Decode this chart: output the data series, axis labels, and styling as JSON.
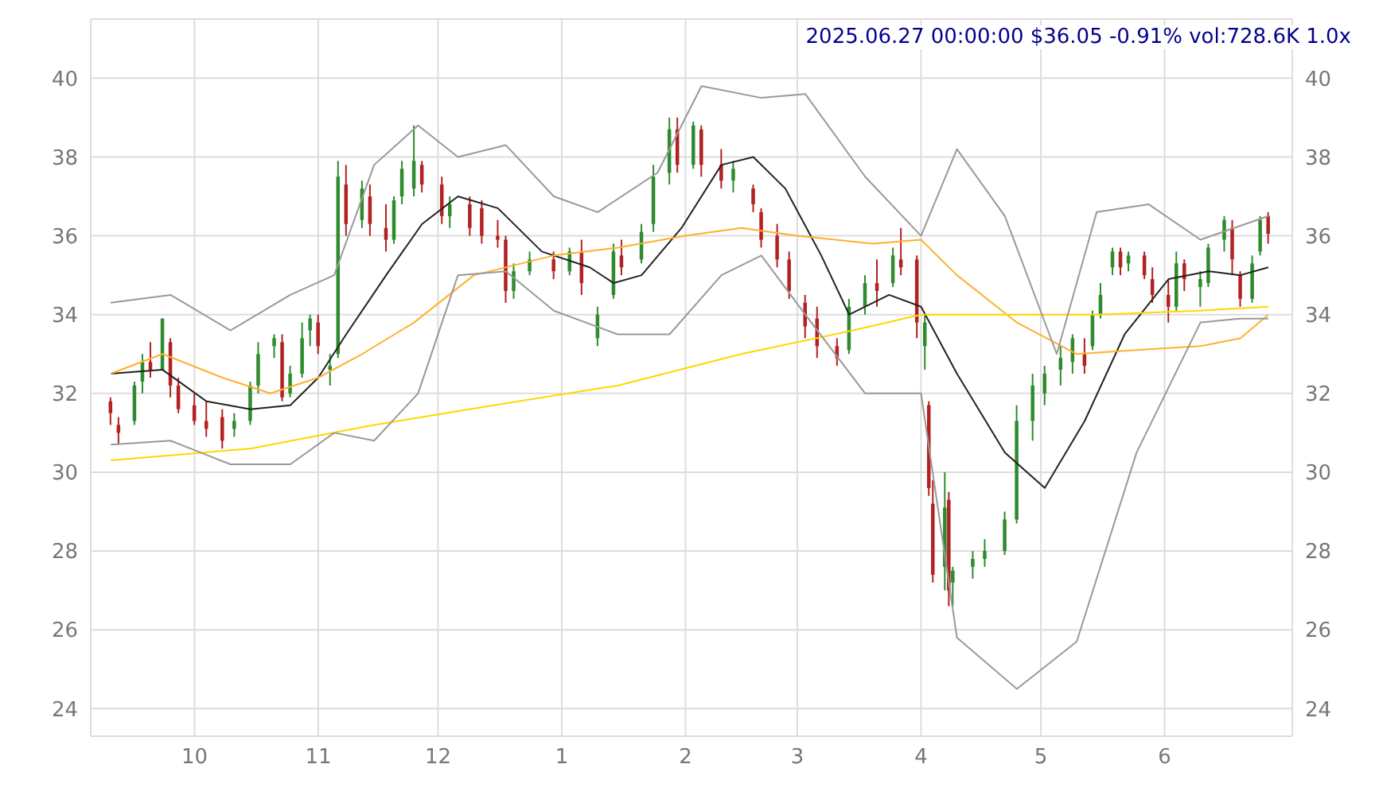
{
  "chart_data": {
    "type": "candlestick",
    "title": "2025.06.27 00:00:00 $36.05 -0.91% vol:728.6K 1.0x",
    "x": [
      "2024-09-10",
      "2024-09-12",
      "2024-09-16",
      "2024-09-18",
      "2024-09-20",
      "2024-09-23",
      "2024-09-25",
      "2024-09-27",
      "2024-10-01",
      "2024-10-04",
      "2024-10-08",
      "2024-10-11",
      "2024-10-15",
      "2024-10-17",
      "2024-10-21",
      "2024-10-23",
      "2024-10-25",
      "2024-10-28",
      "2024-10-30",
      "2024-11-01",
      "2024-11-04",
      "2024-11-06",
      "2024-11-08",
      "2024-11-12",
      "2024-11-14",
      "2024-11-18",
      "2024-11-20",
      "2024-11-22",
      "2024-11-25",
      "2024-11-27",
      "2024-12-02",
      "2024-12-04",
      "2024-12-09",
      "2024-12-12",
      "2024-12-16",
      "2024-12-18",
      "2024-12-20",
      "2024-12-24",
      "2024-12-30",
      "2025-01-03",
      "2025-01-06",
      "2025-01-10",
      "2025-01-14",
      "2025-01-16",
      "2025-01-21",
      "2025-01-24",
      "2025-01-28",
      "2025-01-30",
      "2025-02-03",
      "2025-02-05",
      "2025-02-10",
      "2025-02-13",
      "2025-02-18",
      "2025-02-20",
      "2025-02-24",
      "2025-02-27",
      "2025-03-03",
      "2025-03-06",
      "2025-03-11",
      "2025-03-14",
      "2025-03-18",
      "2025-03-21",
      "2025-03-25",
      "2025-03-27",
      "2025-03-31",
      "2025-04-02",
      "2025-04-03",
      "2025-04-04",
      "2025-04-07",
      "2025-04-08",
      "2025-04-09",
      "2025-04-14",
      "2025-04-17",
      "2025-04-22",
      "2025-04-25",
      "2025-04-29",
      "2025-05-02",
      "2025-05-06",
      "2025-05-09",
      "2025-05-12",
      "2025-05-14",
      "2025-05-16",
      "2025-05-19",
      "2025-05-21",
      "2025-05-23",
      "2025-05-27",
      "2025-05-29",
      "2025-06-02",
      "2025-06-04",
      "2025-06-06",
      "2025-06-10",
      "2025-06-12",
      "2025-06-16",
      "2025-06-18",
      "2025-06-20",
      "2025-06-23",
      "2025-06-25",
      "2025-06-27"
    ],
    "ohlc": [
      [
        31.8,
        31.9,
        31.2,
        31.5
      ],
      [
        31.2,
        31.4,
        30.7,
        31.0
      ],
      [
        31.3,
        32.3,
        31.2,
        32.2
      ],
      [
        32.3,
        33.0,
        32.0,
        32.8
      ],
      [
        32.8,
        33.3,
        32.4,
        32.6
      ],
      [
        32.6,
        33.9,
        32.6,
        33.9
      ],
      [
        33.3,
        33.4,
        31.9,
        32.2
      ],
      [
        32.2,
        32.4,
        31.5,
        31.6
      ],
      [
        31.7,
        32.0,
        31.2,
        31.3
      ],
      [
        31.3,
        31.8,
        30.9,
        31.1
      ],
      [
        31.4,
        31.6,
        30.6,
        30.8
      ],
      [
        31.1,
        31.5,
        30.9,
        31.3
      ],
      [
        31.3,
        32.3,
        31.2,
        32.2
      ],
      [
        32.2,
        33.3,
        32.0,
        33.0
      ],
      [
        33.2,
        33.5,
        32.9,
        33.4
      ],
      [
        33.3,
        33.5,
        31.8,
        31.9
      ],
      [
        32.0,
        32.7,
        31.9,
        32.5
      ],
      [
        32.5,
        33.8,
        32.4,
        33.4
      ],
      [
        33.6,
        34.0,
        33.2,
        33.9
      ],
      [
        33.8,
        34.0,
        33.0,
        33.2
      ],
      [
        32.6,
        33.0,
        32.2,
        32.7
      ],
      [
        33.0,
        37.9,
        32.9,
        37.5
      ],
      [
        37.3,
        37.8,
        36.0,
        36.3
      ],
      [
        36.4,
        37.4,
        36.2,
        37.2
      ],
      [
        37.0,
        37.3,
        36.0,
        36.3
      ],
      [
        36.2,
        36.8,
        35.6,
        35.9
      ],
      [
        35.9,
        37.0,
        35.8,
        36.9
      ],
      [
        37.0,
        37.9,
        36.8,
        37.7
      ],
      [
        37.2,
        38.8,
        37.0,
        37.9
      ],
      [
        37.8,
        37.9,
        37.1,
        37.3
      ],
      [
        37.3,
        37.5,
        36.3,
        36.5
      ],
      [
        36.5,
        37.0,
        36.2,
        36.8
      ],
      [
        36.8,
        37.0,
        36.0,
        36.2
      ],
      [
        36.7,
        36.9,
        35.8,
        36.0
      ],
      [
        36.0,
        36.4,
        35.7,
        35.9
      ],
      [
        35.9,
        36.0,
        34.3,
        34.6
      ],
      [
        34.6,
        35.3,
        34.4,
        35.1
      ],
      [
        35.1,
        35.6,
        35.0,
        35.4
      ],
      [
        35.4,
        35.6,
        34.9,
        35.1
      ],
      [
        35.1,
        35.7,
        35.0,
        35.6
      ],
      [
        35.6,
        35.9,
        34.5,
        34.8
      ],
      [
        33.4,
        34.2,
        33.2,
        34.0
      ],
      [
        34.5,
        35.8,
        34.4,
        35.6
      ],
      [
        35.5,
        35.9,
        35.0,
        35.2
      ],
      [
        35.4,
        36.3,
        35.3,
        36.1
      ],
      [
        36.3,
        37.8,
        36.1,
        37.5
      ],
      [
        37.6,
        39.0,
        37.3,
        38.7
      ],
      [
        38.7,
        39.0,
        37.6,
        37.8
      ],
      [
        37.8,
        38.9,
        37.7,
        38.8
      ],
      [
        38.7,
        38.8,
        37.5,
        37.8
      ],
      [
        37.8,
        38.2,
        37.2,
        37.4
      ],
      [
        37.4,
        37.9,
        37.1,
        37.7
      ],
      [
        37.2,
        37.3,
        36.6,
        36.8
      ],
      [
        36.6,
        36.7,
        35.7,
        35.9
      ],
      [
        36.0,
        36.3,
        35.2,
        35.4
      ],
      [
        35.4,
        35.6,
        34.4,
        34.6
      ],
      [
        34.3,
        34.5,
        33.4,
        33.7
      ],
      [
        33.9,
        34.2,
        32.9,
        33.2
      ],
      [
        33.2,
        33.4,
        32.7,
        32.9
      ],
      [
        33.1,
        34.4,
        33.0,
        34.2
      ],
      [
        34.2,
        35.0,
        34.0,
        34.8
      ],
      [
        34.8,
        35.4,
        34.2,
        34.6
      ],
      [
        34.8,
        35.7,
        34.7,
        35.5
      ],
      [
        35.4,
        36.2,
        35.0,
        35.2
      ],
      [
        35.4,
        35.5,
        33.4,
        33.8
      ],
      [
        33.2,
        34.0,
        32.6,
        33.8
      ],
      [
        31.7,
        31.8,
        29.4,
        29.6
      ],
      [
        29.2,
        29.8,
        27.2,
        27.4
      ],
      [
        27.6,
        30.0,
        27.0,
        29.1
      ],
      [
        29.3,
        29.5,
        26.6,
        27.0
      ],
      [
        27.2,
        27.6,
        26.6,
        27.5
      ],
      [
        27.6,
        28.0,
        27.3,
        27.8
      ],
      [
        27.8,
        28.3,
        27.6,
        28.0
      ],
      [
        28.0,
        29.0,
        27.9,
        28.8
      ],
      [
        28.8,
        31.7,
        28.7,
        31.3
      ],
      [
        31.3,
        32.5,
        30.8,
        32.2
      ],
      [
        32.0,
        32.7,
        31.7,
        32.5
      ],
      [
        32.6,
        33.2,
        32.2,
        32.9
      ],
      [
        32.8,
        33.5,
        32.5,
        33.4
      ],
      [
        33.0,
        33.4,
        32.5,
        32.7
      ],
      [
        33.2,
        34.1,
        33.1,
        34.0
      ],
      [
        34.0,
        34.8,
        33.9,
        34.5
      ],
      [
        35.2,
        35.7,
        35.0,
        35.6
      ],
      [
        35.6,
        35.7,
        35.0,
        35.2
      ],
      [
        35.3,
        35.6,
        35.1,
        35.5
      ],
      [
        35.5,
        35.6,
        34.9,
        35.0
      ],
      [
        34.9,
        35.2,
        34.3,
        34.5
      ],
      [
        34.5,
        34.9,
        33.8,
        34.2
      ],
      [
        34.2,
        35.6,
        34.1,
        35.3
      ],
      [
        35.3,
        35.4,
        34.6,
        34.9
      ],
      [
        34.7,
        35.1,
        34.2,
        34.9
      ],
      [
        34.8,
        35.8,
        34.7,
        35.7
      ],
      [
        35.9,
        36.5,
        35.6,
        36.4
      ],
      [
        36.2,
        36.4,
        35.0,
        35.4
      ],
      [
        35.0,
        35.1,
        34.2,
        34.4
      ],
      [
        34.4,
        35.5,
        34.3,
        35.3
      ],
      [
        35.6,
        36.5,
        35.5,
        36.4
      ],
      [
        36.5,
        36.6,
        35.8,
        36.05
      ]
    ],
    "colors": [
      "#b22222",
      "#b22222",
      "#2e8b2e",
      "#2e8b2e",
      "#b22222",
      "#2e8b2e",
      "#b22222",
      "#b22222",
      "#b22222",
      "#b22222",
      "#b22222",
      "#2e8b2e",
      "#2e8b2e",
      "#2e8b2e",
      "#2e8b2e",
      "#b22222",
      "#2e8b2e",
      "#2e8b2e",
      "#2e8b2e",
      "#b22222",
      "#2e8b2e",
      "#2e8b2e",
      "#b22222",
      "#2e8b2e",
      "#b22222",
      "#b22222",
      "#2e8b2e",
      "#2e8b2e",
      "#2e8b2e",
      "#b22222",
      "#b22222",
      "#2e8b2e",
      "#b22222",
      "#b22222",
      "#b22222",
      "#b22222",
      "#2e8b2e",
      "#2e8b2e",
      "#b22222",
      "#2e8b2e",
      "#b22222",
      "#2e8b2e",
      "#2e8b2e",
      "#b22222",
      "#2e8b2e",
      "#2e8b2e",
      "#2e8b2e",
      "#b22222",
      "#2e8b2e",
      "#b22222",
      "#b22222",
      "#2e8b2e",
      "#b22222",
      "#b22222",
      "#b22222",
      "#b22222",
      "#b22222",
      "#b22222",
      "#b22222",
      "#2e8b2e",
      "#2e8b2e",
      "#b22222",
      "#2e8b2e",
      "#b22222",
      "#b22222",
      "#2e8b2e",
      "#b22222",
      "#b22222",
      "#2e8b2e",
      "#b22222",
      "#2e8b2e",
      "#2e8b2e",
      "#2e8b2e",
      "#2e8b2e",
      "#2e8b2e",
      "#2e8b2e",
      "#2e8b2e",
      "#2e8b2e",
      "#2e8b2e",
      "#b22222",
      "#2e8b2e",
      "#2e8b2e",
      "#2e8b2e",
      "#b22222",
      "#2e8b2e",
      "#b22222",
      "#b22222",
      "#b22222",
      "#2e8b2e",
      "#b22222",
      "#2e8b2e",
      "#2e8b2e",
      "#2e8b2e",
      "#b22222",
      "#b22222",
      "#2e8b2e",
      "#2e8b2e",
      "#b22222"
    ],
    "series": [
      {
        "type": "line",
        "color": "#222222",
        "x": [
          "2024-09-10",
          "2024-09-23",
          "2024-10-04",
          "2024-10-15",
          "2024-10-25",
          "2024-11-01",
          "2024-11-08",
          "2024-11-18",
          "2024-11-27",
          "2024-12-06",
          "2024-12-16",
          "2024-12-27",
          "2025-01-08",
          "2025-01-14",
          "2025-01-21",
          "2025-01-31",
          "2025-02-10",
          "2025-02-18",
          "2025-02-26",
          "2025-03-07",
          "2025-03-14",
          "2025-03-24",
          "2025-04-01",
          "2025-04-10",
          "2025-04-22",
          "2025-05-02",
          "2025-05-12",
          "2025-05-22",
          "2025-06-02",
          "2025-06-12",
          "2025-06-20",
          "2025-06-27"
        ],
        "values": [
          32.5,
          32.6,
          31.8,
          31.6,
          31.7,
          32.4,
          33.5,
          35.0,
          36.3,
          37.0,
          36.7,
          35.6,
          35.2,
          34.8,
          35.0,
          36.2,
          37.8,
          38.0,
          37.2,
          35.5,
          34.0,
          34.5,
          34.2,
          32.5,
          30.5,
          29.6,
          31.3,
          33.5,
          34.9,
          35.1,
          35.0,
          35.2
        ]
      },
      {
        "type": "line",
        "color": "#ffb02e",
        "x": [
          "2024-09-10",
          "2024-09-23",
          "2024-10-08",
          "2024-10-20",
          "2024-11-01",
          "2024-11-12",
          "2024-11-25",
          "2024-12-10",
          "2024-12-30",
          "2025-01-15",
          "2025-02-01",
          "2025-02-15",
          "2025-03-01",
          "2025-03-20",
          "2025-04-01",
          "2025-04-10",
          "2025-04-25",
          "2025-05-10",
          "2025-05-25",
          "2025-06-10",
          "2025-06-20",
          "2025-06-27"
        ],
        "values": [
          32.5,
          33.0,
          32.4,
          32.0,
          32.4,
          33.0,
          33.8,
          35.0,
          35.5,
          35.7,
          36.0,
          36.2,
          36.0,
          35.8,
          35.9,
          35.0,
          33.8,
          33.0,
          33.1,
          33.2,
          33.4,
          34.0
        ]
      },
      {
        "type": "line",
        "color": "#ffd700",
        "x": [
          "2024-09-10",
          "2024-10-15",
          "2024-11-15",
          "2024-12-15",
          "2025-01-15",
          "2025-02-15",
          "2025-03-15",
          "2025-04-01",
          "2025-04-20",
          "2025-05-15",
          "2025-06-10",
          "2025-06-27"
        ],
        "values": [
          30.3,
          30.6,
          31.2,
          31.7,
          32.2,
          33.0,
          33.6,
          34.0,
          34.0,
          34.0,
          34.1,
          34.2
        ]
      },
      {
        "type": "line",
        "color": "#999999",
        "x": [
          "2024-09-10",
          "2024-09-25",
          "2024-10-10",
          "2024-10-25",
          "2024-11-05",
          "2024-11-15",
          "2024-11-26",
          "2024-12-06",
          "2024-12-18",
          "2024-12-30",
          "2025-01-10",
          "2025-01-25",
          "2025-02-05",
          "2025-02-20",
          "2025-03-03",
          "2025-03-18",
          "2025-04-01",
          "2025-04-10",
          "2025-04-22",
          "2025-05-05",
          "2025-05-15",
          "2025-05-28",
          "2025-06-10",
          "2025-06-27"
        ],
        "values": [
          34.3,
          34.5,
          33.6,
          34.5,
          35.0,
          37.8,
          38.8,
          38.0,
          38.3,
          37.0,
          36.6,
          37.6,
          39.8,
          39.5,
          39.6,
          37.5,
          36.0,
          38.2,
          36.5,
          33.0,
          36.6,
          36.8,
          35.9,
          36.5
        ]
      },
      {
        "type": "line",
        "color": "#999999",
        "x": [
          "2024-09-10",
          "2024-09-25",
          "2024-10-10",
          "2024-10-25",
          "2024-11-05",
          "2024-11-15",
          "2024-11-26",
          "2024-12-06",
          "2024-12-18",
          "2024-12-30",
          "2025-01-15",
          "2025-01-28",
          "2025-02-10",
          "2025-02-20",
          "2025-03-03",
          "2025-03-18",
          "2025-04-01",
          "2025-04-10",
          "2025-04-25",
          "2025-05-10",
          "2025-05-25",
          "2025-06-10",
          "2025-06-20",
          "2025-06-27"
        ],
        "values": [
          30.7,
          30.8,
          30.2,
          30.2,
          31.0,
          30.8,
          32.0,
          35.0,
          35.1,
          34.1,
          33.5,
          33.5,
          35.0,
          35.5,
          34.0,
          32.0,
          32.0,
          25.8,
          24.5,
          25.7,
          30.5,
          33.8,
          33.9,
          33.9
        ]
      }
    ],
    "xlim": [
      "2024-09-05",
      "2025-07-03"
    ],
    "xticks": [
      {
        "value": "2024-10-01",
        "label": "10"
      },
      {
        "value": "2024-11-01",
        "label": "11"
      },
      {
        "value": "2024-12-01",
        "label": "12"
      },
      {
        "value": "2025-01-01",
        "label": "1"
      },
      {
        "value": "2025-02-01",
        "label": "2"
      },
      {
        "value": "2025-03-01",
        "label": "3"
      },
      {
        "value": "2025-04-01",
        "label": "4"
      },
      {
        "value": "2025-05-01",
        "label": "5"
      },
      {
        "value": "2025-06-01",
        "label": "6"
      }
    ],
    "ylim": [
      23.3,
      41.5
    ],
    "yticks": [
      24,
      26,
      28,
      30,
      32,
      34,
      36,
      38,
      40
    ],
    "y2lim": [
      23.3,
      41.5
    ],
    "y2ticks": [
      24,
      26,
      28,
      30,
      32,
      34,
      36,
      38,
      40
    ],
    "grid": true
  }
}
